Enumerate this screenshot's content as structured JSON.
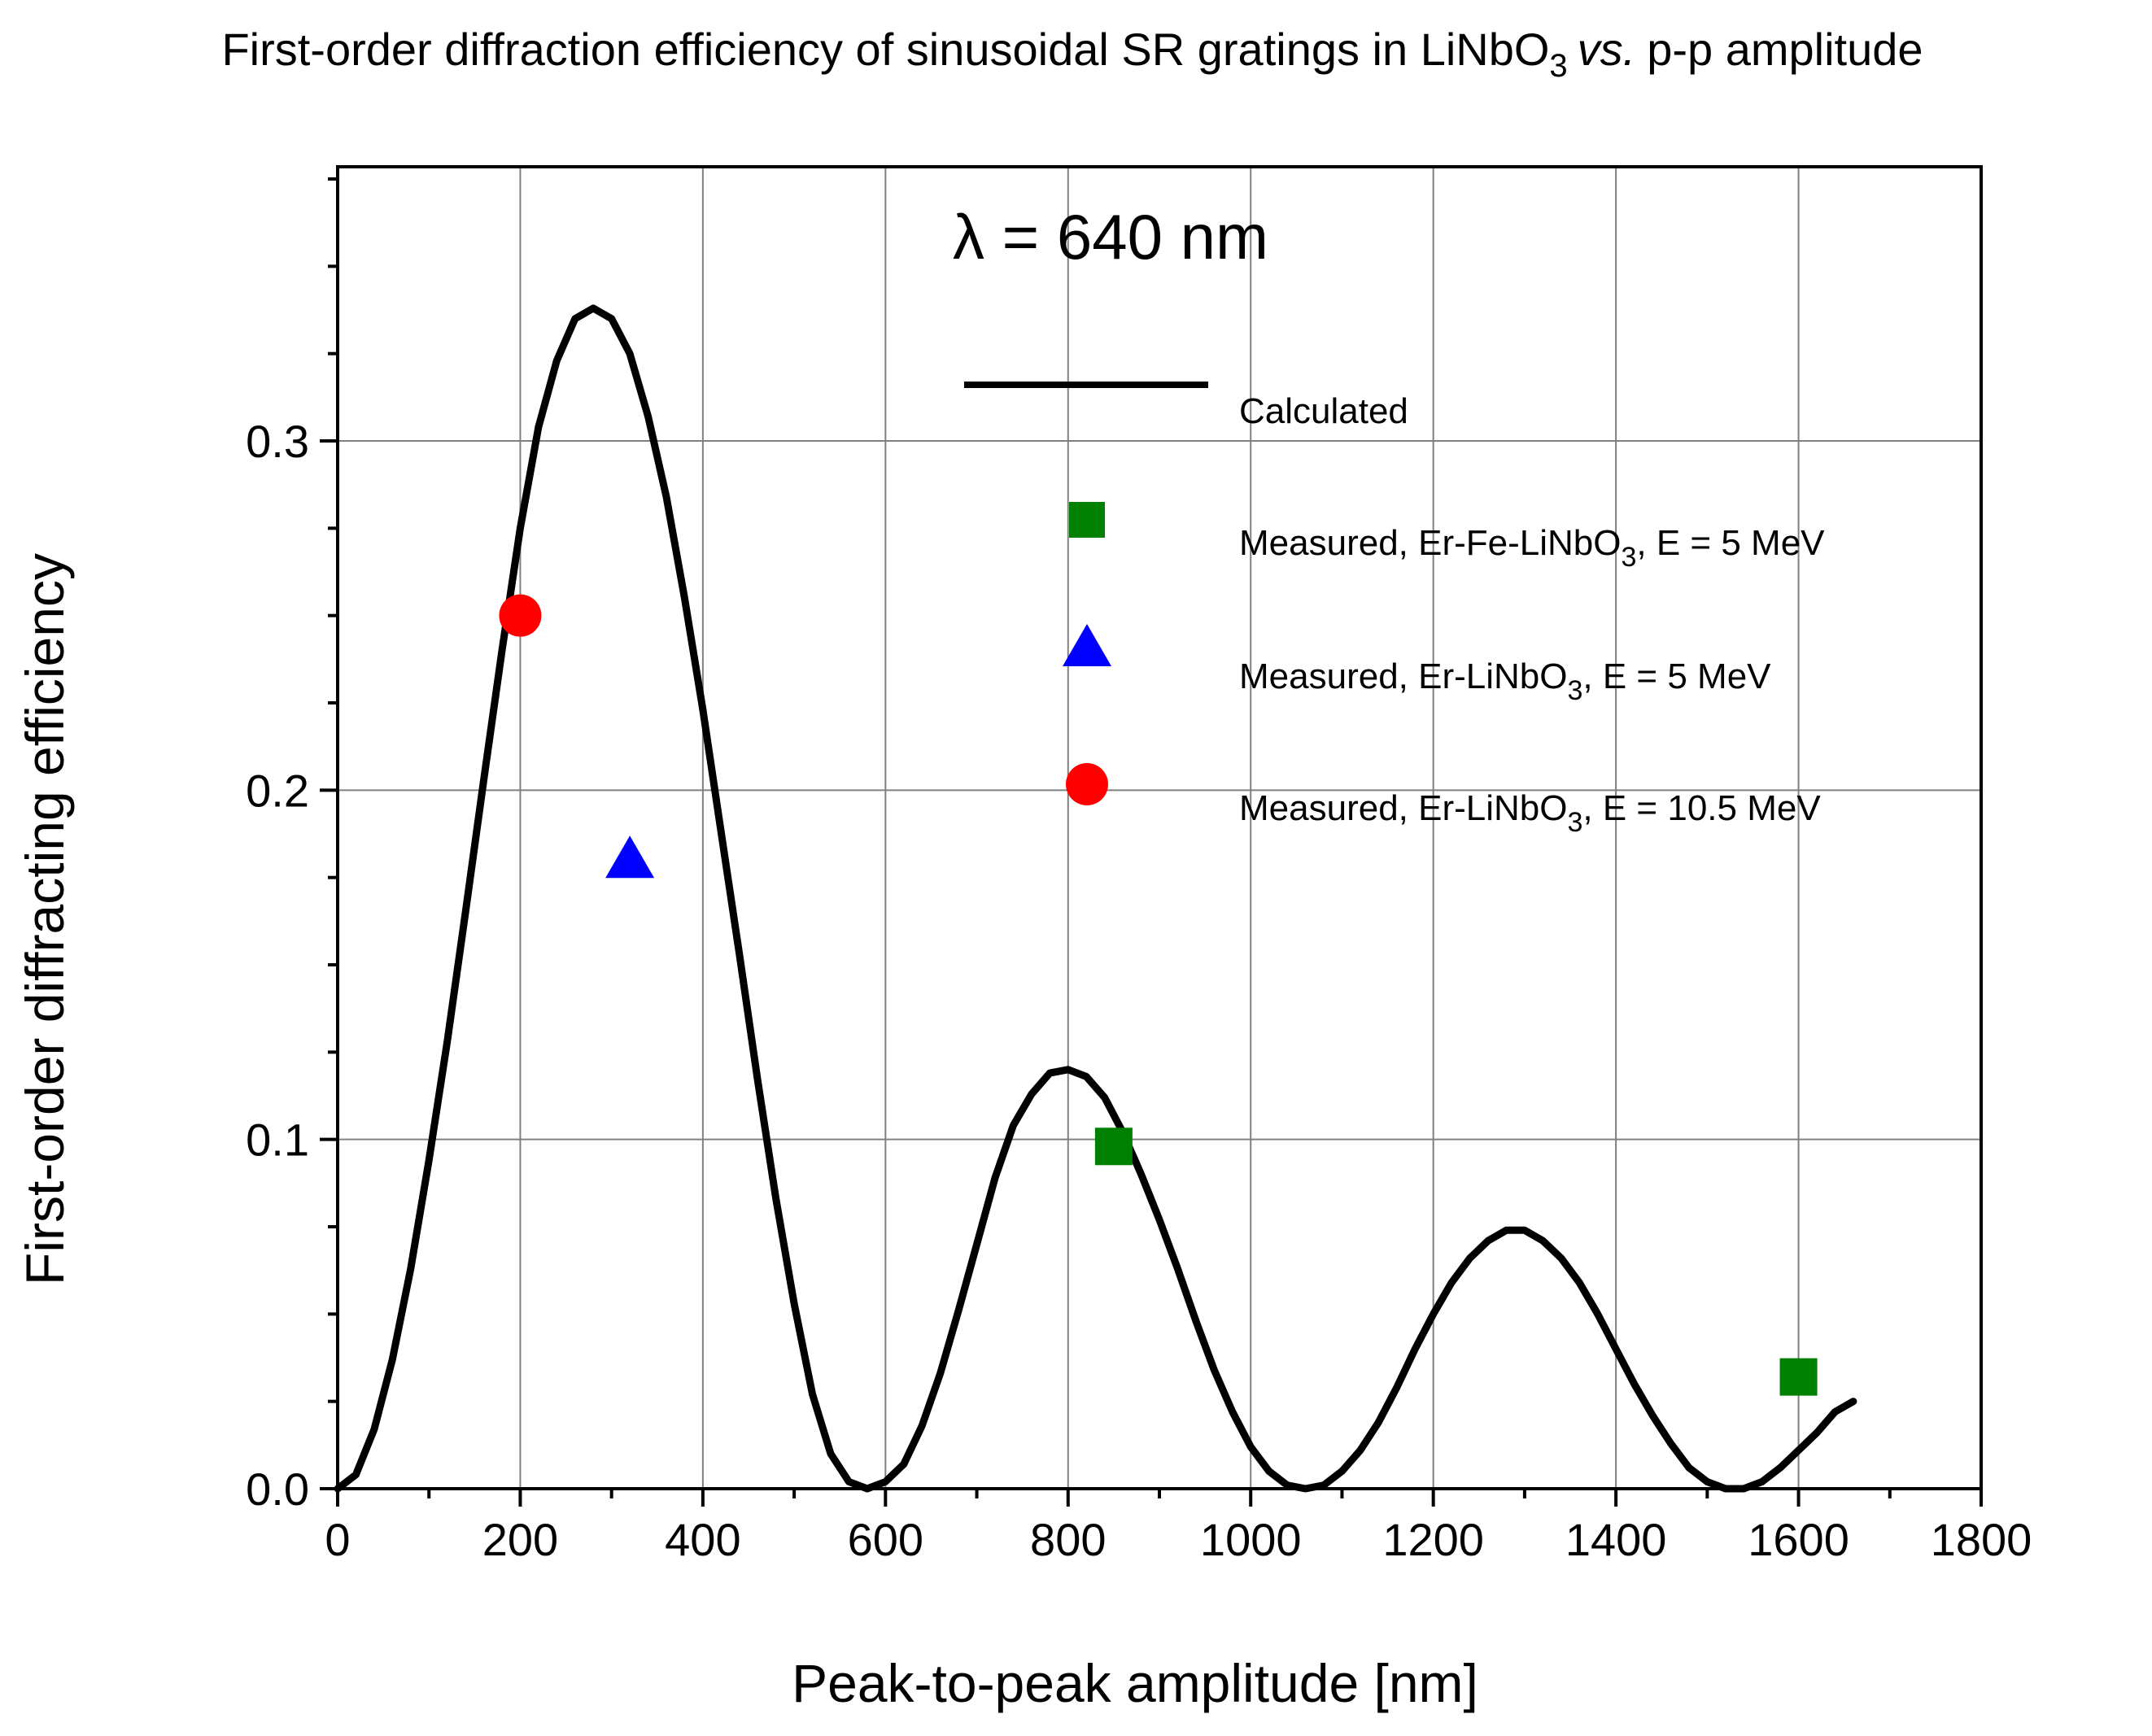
{
  "chart_data": {
    "type": "line",
    "title": {
      "main": "First-order diffraction efficiency of sinusoidal SR gratings in LiNbO",
      "sub": "3",
      "italic": "vs.",
      "tail": "p-p amplitude"
    },
    "xlabel": "Peak-to-peak amplitude [nm]",
    "ylabel": "First-order diffracting efficiency",
    "xlim": [
      0,
      1800
    ],
    "ylim": [
      0,
      0.3785
    ],
    "x_ticks": [
      0,
      200,
      400,
      600,
      800,
      1000,
      1200,
      1400,
      1600,
      1800
    ],
    "x_tick_labels": [
      "0",
      "200",
      "400",
      "600",
      "800",
      "1000",
      "1200",
      "1400",
      "1600",
      "1800"
    ],
    "y_ticks": [
      0.0,
      0.1,
      0.2,
      0.3
    ],
    "y_tick_labels": [
      "0.0",
      "0.1",
      "0.2",
      "0.3"
    ],
    "x_minor_step": 100,
    "y_minor_step": 0.025,
    "grid": true,
    "annotation": "λ = 640 nm",
    "legend_position": "top-right",
    "series": [
      {
        "name": "Calculated",
        "kind": "line",
        "color": "#000000",
        "x": [
          0,
          20,
          40,
          60,
          80,
          100,
          120,
          140,
          160,
          180,
          200,
          220,
          240,
          260,
          280,
          300,
          320,
          340,
          360,
          380,
          400,
          420,
          440,
          460,
          480,
          500,
          520,
          540,
          560,
          580,
          600,
          620,
          640,
          660,
          680,
          700,
          720,
          740,
          760,
          780,
          800,
          820,
          840,
          860,
          880,
          900,
          920,
          940,
          960,
          980,
          1000,
          1020,
          1040,
          1060,
          1080,
          1100,
          1120,
          1140,
          1160,
          1180,
          1200,
          1220,
          1240,
          1260,
          1280,
          1300,
          1320,
          1340,
          1360,
          1380,
          1400,
          1420,
          1440,
          1460,
          1480,
          1500,
          1520,
          1540,
          1560,
          1580,
          1600,
          1620,
          1640,
          1660
        ],
        "y": [
          0,
          0.004,
          0.017,
          0.037,
          0.063,
          0.094,
          0.128,
          0.165,
          0.203,
          0.24,
          0.275,
          0.304,
          0.323,
          0.335,
          0.338,
          0.335,
          0.325,
          0.307,
          0.284,
          0.255,
          0.223,
          0.188,
          0.153,
          0.117,
          0.083,
          0.053,
          0.027,
          0.01,
          0.002,
          0.0,
          0.002,
          0.007,
          0.018,
          0.033,
          0.051,
          0.07,
          0.089,
          0.104,
          0.113,
          0.119,
          0.12,
          0.118,
          0.112,
          0.102,
          0.09,
          0.077,
          0.063,
          0.048,
          0.034,
          0.022,
          0.012,
          0.005,
          0.001,
          0.0,
          0.001,
          0.005,
          0.011,
          0.019,
          0.029,
          0.04,
          0.05,
          0.059,
          0.066,
          0.071,
          0.074,
          0.074,
          0.071,
          0.066,
          0.059,
          0.05,
          0.04,
          0.03,
          0.021,
          0.013,
          0.006,
          0.002,
          0.0,
          0.0,
          0.002,
          0.006,
          0.011,
          0.016,
          0.022,
          0.025
        ]
      },
      {
        "name": "Measured, Er-Fe-LiNbO",
        "name_sub": "3",
        "name_tail": ", E = 5 MeV",
        "kind": "scatter",
        "marker": "square",
        "color": "#008000",
        "x": [
          850,
          1600
        ],
        "y": [
          0.098,
          0.032
        ]
      },
      {
        "name": "Measured, Er-LiNbO",
        "name_sub": "3",
        "name_tail": ", E = 5 MeV",
        "kind": "scatter",
        "marker": "triangle",
        "color": "#0000ff",
        "x": [
          320
        ],
        "y": [
          0.18
        ]
      },
      {
        "name": "Measured, Er-LiNbO",
        "name_sub": "3",
        "name_tail": ", E = 10.5 MeV",
        "kind": "scatter",
        "marker": "circle",
        "color": "#ff0000",
        "x": [
          200
        ],
        "y": [
          0.25
        ]
      }
    ]
  }
}
